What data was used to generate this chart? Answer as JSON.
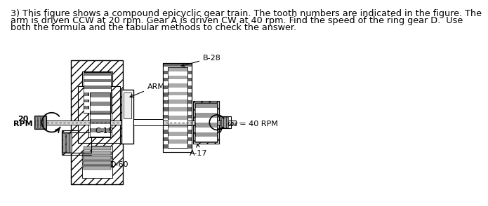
{
  "title_line1": "3) This figure shows a compound epicyclic gear train. The tooth numbers are indicated in the figure. The",
  "title_line2": "arm is driven CCW at 20 rpm. Gear A is driven CW at 40 rpm. Find the speed of the ring gear D.  Use",
  "title_line3": "both the formula and the tabular methods to check the answer.",
  "bg_color": "#ffffff",
  "text_color": "#000000",
  "label_ARM": "ARM",
  "label_B": "B-28",
  "label_C": "C-15",
  "label_A": "A-17",
  "label_D": "D-60",
  "label_20rpm_1": "20",
  "label_20rpm_2": "RPM",
  "label_omega": "ωₐ = 40 RPM",
  "font_size_body": 9.2,
  "font_size_labels": 8.0,
  "font_size_small": 7.5
}
